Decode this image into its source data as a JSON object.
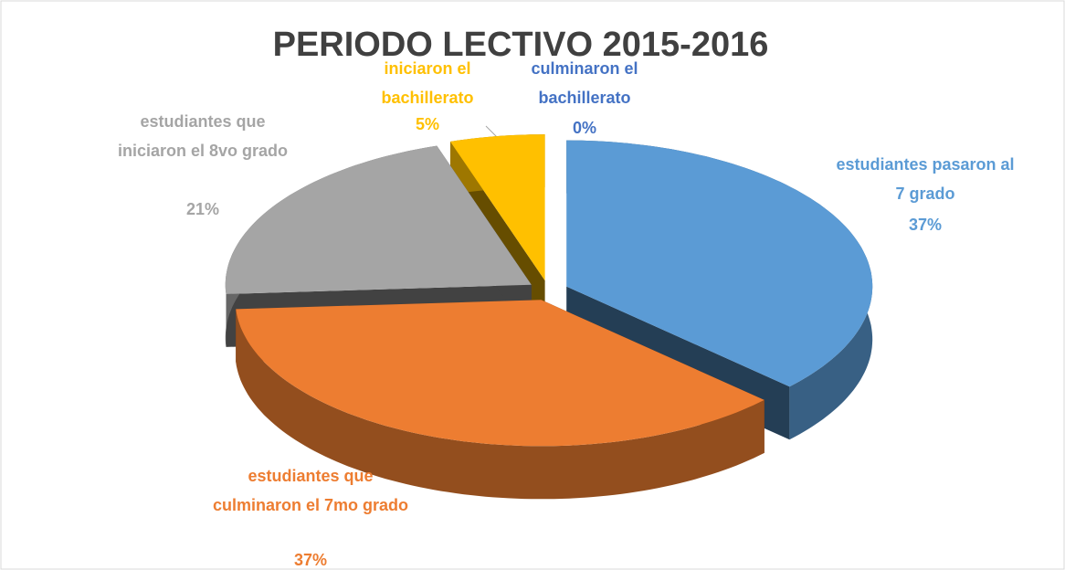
{
  "chart_data": {
    "type": "pie3d",
    "title": "PERIODO LECTIVO 2015-2016",
    "categories": [
      "estudiantes pasaron al 7 grado",
      "estudiantes que culminaron el 7mo grado",
      "estudiantes que iniciaron el 8vo grado",
      "iniciaron el bachillerato",
      "culminaron el bachillerato"
    ],
    "values": [
      37,
      37,
      21,
      5,
      0
    ],
    "value_labels": [
      "37%",
      "37%",
      "21%",
      "5%",
      "0%"
    ],
    "colors": [
      "#5b9bd5",
      "#ed7d31",
      "#a5a5a5",
      "#ffc000",
      "#4472c4"
    ]
  }
}
